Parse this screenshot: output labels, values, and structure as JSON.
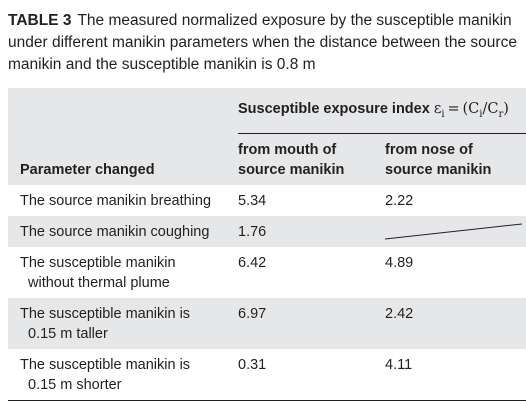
{
  "caption": {
    "label": "TABLE 3",
    "text": "The measured normalized exposure by the susceptible manikin under different manikin parameters when the distance between the source manikin and the susceptible manikin is 0.8 m"
  },
  "table": {
    "group_header": {
      "text": "Susceptible exposure index",
      "formula": [
        "ε",
        "i",
        " = (C",
        "i",
        "/C",
        "r",
        ")"
      ]
    },
    "columns": [
      [
        "Parameter changed"
      ],
      [
        "from mouth of",
        "source manikin"
      ],
      [
        "from nose of",
        "source manikin"
      ]
    ],
    "rows": [
      [
        [
          "The source manikin breathing"
        ],
        5.34,
        2.22
      ],
      [
        [
          "The source manikin coughing"
        ],
        1.76,
        null
      ],
      [
        [
          "The susceptible manikin",
          "without thermal plume"
        ],
        6.42,
        4.89
      ],
      [
        [
          "The susceptible manikin is",
          "0.15 m taller"
        ],
        6.97,
        2.42
      ],
      [
        [
          "The susceptible manikin is",
          "0.15 m shorter"
        ],
        0.31,
        4.11
      ]
    ]
  }
}
